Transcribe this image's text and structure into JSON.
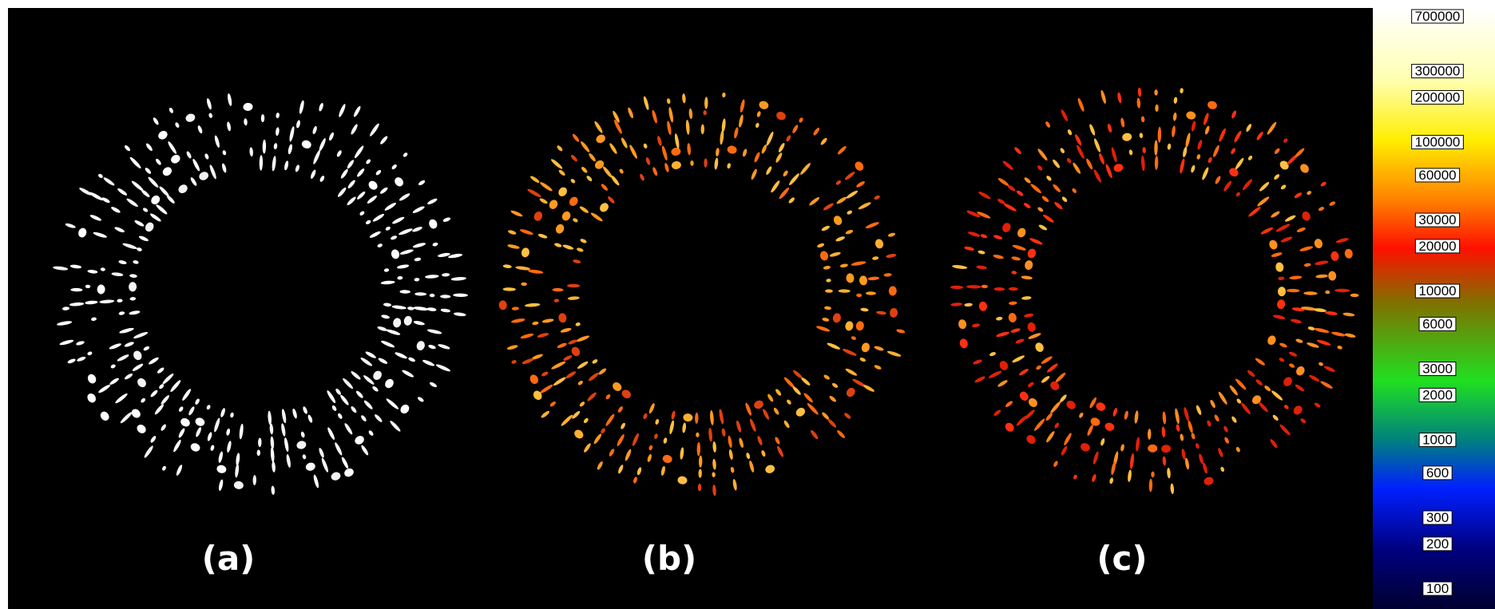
{
  "panels": [
    {
      "label": "(a)"
    },
    {
      "label": "(b)"
    },
    {
      "label": "(c)"
    }
  ],
  "colorbar": {
    "ticks": [
      700000,
      300000,
      200000,
      100000,
      60000,
      30000,
      20000,
      10000,
      6000,
      3000,
      2000,
      1000,
      600,
      300,
      200,
      100
    ]
  }
}
